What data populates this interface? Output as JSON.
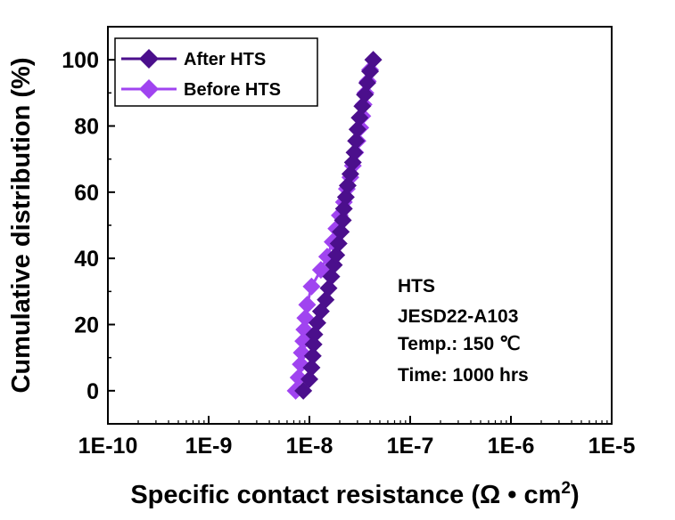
{
  "chart_data": {
    "type": "line",
    "title": "",
    "xlabel": "Specific contact resistance (Ω • cm",
    "xlabel_sup": "2",
    "xlabel_end": ")",
    "ylabel": "Cumulative distribution (%)",
    "xscale": "log",
    "xlim": [
      1e-10,
      1e-05
    ],
    "ylim": [
      -10,
      110
    ],
    "x_tick_values": [
      1e-10,
      1e-09,
      1e-08,
      1e-07,
      1e-06,
      1e-05
    ],
    "x_tick_labels": [
      "1E-10",
      "1E-9",
      "1E-8",
      "1E-7",
      "1E-6",
      "1E-5"
    ],
    "y_tick_values": [
      0,
      20,
      40,
      60,
      80,
      100
    ],
    "y_tick_labels": [
      "0",
      "20",
      "40",
      "60",
      "80",
      "100"
    ],
    "grid": false,
    "legend_position": "top-left",
    "series": [
      {
        "name": "After HTS",
        "color": "#4b0f8c",
        "marker": "diamond",
        "x": [
          8.7e-09,
          1e-08,
          1.05e-08,
          1.08e-08,
          1.1e-08,
          1.12e-08,
          1.2e-08,
          1.3e-08,
          1.45e-08,
          1.55e-08,
          1.65e-08,
          1.75e-08,
          1.85e-08,
          1.95e-08,
          2.05e-08,
          2.15e-08,
          2.2e-08,
          2.3e-08,
          2.4e-08,
          2.55e-08,
          2.7e-08,
          2.8e-08,
          2.9e-08,
          3e-08,
          3.15e-08,
          3.35e-08,
          3.55e-08,
          3.75e-08,
          4e-08,
          4.3e-08
        ],
        "y": [
          0,
          3.5,
          7,
          10.5,
          14,
          17,
          20.5,
          24,
          27.5,
          31,
          34.5,
          38,
          41,
          44.5,
          48,
          51.5,
          55,
          58.5,
          62,
          65.5,
          69,
          72,
          75.5,
          79,
          82.5,
          86,
          89.5,
          93,
          96.5,
          100
        ]
      },
      {
        "name": "Before HTS",
        "color": "#a044f0",
        "marker": "diamond",
        "x": [
          7.3e-09,
          7.8e-09,
          8.2e-09,
          8.4e-09,
          8.7e-09,
          8.9e-09,
          9.1e-09,
          9.5e-09,
          1.05e-08,
          1.3e-08,
          1.5e-08,
          1.7e-08,
          1.85e-08,
          2e-08,
          2.2e-08,
          2.35e-08,
          2.55e-08,
          2.7e-08,
          2.85e-08,
          3e-08,
          3.2e-08,
          3.35e-08,
          3.45e-08,
          3.6e-08,
          3.8e-08,
          4e-08
        ],
        "y": [
          0,
          4,
          8,
          11.5,
          15,
          18.5,
          22,
          26,
          31.5,
          36.5,
          40.5,
          45,
          49,
          53,
          57,
          61,
          64.5,
          68,
          72,
          75.5,
          79.5,
          83,
          86.5,
          90,
          93.5,
          97
        ]
      }
    ],
    "annotations": [
      "HTS",
      "JESD22-A103",
      "Temp.: 150 ℃",
      "Time: 1000 hrs"
    ]
  }
}
